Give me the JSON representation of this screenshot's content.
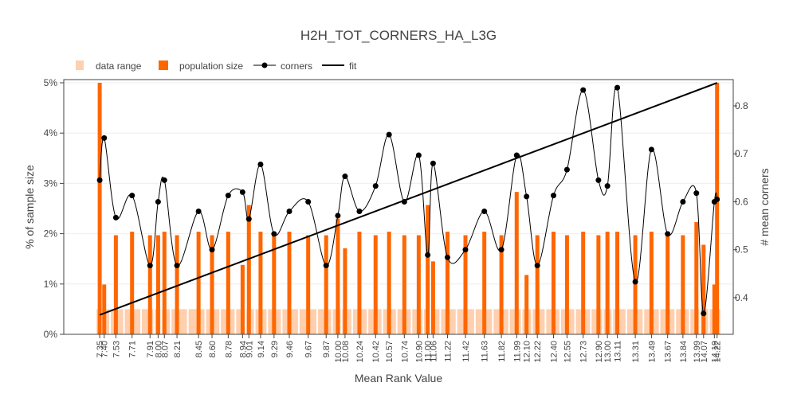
{
  "chart_data": {
    "type": "bar",
    "title": "H2H_TOT_CORNERS_HA_L3G",
    "xlabel": "Mean Rank Value",
    "ylabel_left": "% of sample size",
    "ylabel_right": "# mean corners",
    "xlim": [
      6.95,
      14.4
    ],
    "ylim_left": [
      0,
      5
    ],
    "ylim_right": [
      0.3235,
      0.8548
    ],
    "left_ticks": [
      {
        "v": 0,
        "label": "0%"
      },
      {
        "v": 1,
        "label": "1%"
      },
      {
        "v": 2,
        "label": "2%"
      },
      {
        "v": 3,
        "label": "3%"
      },
      {
        "v": 4,
        "label": "4%"
      },
      {
        "v": 5,
        "label": "5%"
      }
    ],
    "right_ticks": [
      {
        "v": 0.4,
        "label": "0.4"
      },
      {
        "v": 0.5,
        "label": "0.5"
      },
      {
        "v": 0.6,
        "label": "0.6"
      },
      {
        "v": 0.7,
        "label": "0.7"
      },
      {
        "v": 0.8,
        "label": "0.8"
      }
    ],
    "x_tick_labels": [
      "7.35",
      "7.40",
      "7.53",
      "7.71",
      "7.91",
      "8.00",
      "8.07",
      "8.21",
      "8.45",
      "8.60",
      "8.78",
      "8.94",
      "9.01",
      "9.14",
      "9.29",
      "9.46",
      "9.67",
      "9.87",
      "10.00",
      "10.08",
      "10.24",
      "10.42",
      "10.57",
      "10.74",
      "10.90",
      "11.00",
      "11.06",
      "11.22",
      "11.42",
      "11.63",
      "11.82",
      "11.99",
      "12.10",
      "12.22",
      "12.40",
      "12.55",
      "12.73",
      "12.90",
      "13.00",
      "13.11",
      "13.31",
      "13.49",
      "13.67",
      "13.84",
      "13.99",
      "14.07",
      "14.19",
      "14.22"
    ],
    "legend": {
      "placement": "top-left",
      "items": [
        {
          "label": "data range",
          "kind": "range"
        },
        {
          "label": "population size",
          "kind": "bar"
        },
        {
          "label": "corners",
          "kind": "line-marker"
        },
        {
          "label": "fit",
          "kind": "line"
        }
      ]
    },
    "series": [
      {
        "name": "population size",
        "axis": "left",
        "color": "#ff6600",
        "x": [
          7.35,
          7.4,
          7.53,
          7.71,
          7.91,
          8.0,
          8.07,
          8.21,
          8.45,
          8.6,
          8.78,
          8.94,
          9.01,
          9.14,
          9.29,
          9.46,
          9.67,
          9.87,
          10.0,
          10.08,
          10.24,
          10.42,
          10.57,
          10.74,
          10.9,
          11.0,
          11.06,
          11.22,
          11.42,
          11.63,
          11.82,
          11.99,
          12.1,
          12.22,
          12.4,
          12.55,
          12.73,
          12.9,
          13.0,
          13.11,
          13.31,
          13.49,
          13.67,
          13.84,
          13.99,
          14.07,
          14.19,
          14.22
        ],
        "values": [
          5.0,
          0.99,
          1.97,
          2.04,
          1.97,
          1.97,
          2.04,
          1.97,
          2.04,
          1.97,
          2.04,
          1.38,
          2.57,
          2.04,
          1.97,
          2.04,
          1.97,
          1.97,
          2.3,
          1.71,
          2.04,
          1.97,
          2.04,
          1.97,
          1.97,
          2.57,
          1.45,
          2.04,
          1.97,
          2.04,
          1.97,
          2.83,
          1.18,
          1.97,
          2.04,
          1.97,
          2.04,
          1.97,
          2.04,
          2.04,
          1.97,
          2.04,
          1.97,
          1.97,
          2.23,
          1.78,
          0.99,
          5.0
        ]
      },
      {
        "name": "corners",
        "axis": "right",
        "color": "#000000",
        "x": [
          7.35,
          7.4,
          7.53,
          7.71,
          7.91,
          8.0,
          8.07,
          8.21,
          8.45,
          8.6,
          8.78,
          8.94,
          9.01,
          9.14,
          9.29,
          9.46,
          9.67,
          9.87,
          10.0,
          10.08,
          10.24,
          10.42,
          10.57,
          10.74,
          10.9,
          11.0,
          11.06,
          11.22,
          11.42,
          11.63,
          11.82,
          11.99,
          12.1,
          12.22,
          12.4,
          12.55,
          12.73,
          12.9,
          13.0,
          13.11,
          13.31,
          13.49,
          13.67,
          13.84,
          13.99,
          14.07,
          14.19,
          14.22
        ],
        "values": [
          0.645,
          0.733,
          0.567,
          0.613,
          0.467,
          0.6,
          0.645,
          0.467,
          0.58,
          0.5,
          0.613,
          0.62,
          0.564,
          0.678,
          0.533,
          0.58,
          0.6,
          0.467,
          0.571,
          0.653,
          0.58,
          0.633,
          0.74,
          0.6,
          0.697,
          0.489,
          0.68,
          0.484,
          0.5,
          0.58,
          0.5,
          0.697,
          0.611,
          0.467,
          0.613,
          0.667,
          0.833,
          0.645,
          0.633,
          0.838,
          0.433,
          0.709,
          0.533,
          0.6,
          0.618,
          0.367,
          0.6,
          0.605
        ]
      },
      {
        "name": "fit",
        "axis": "right",
        "color": "#000000",
        "x": [
          7.35,
          14.22
        ],
        "values": [
          0.364,
          0.848
        ]
      }
    ],
    "data_range_band": {
      "axis": "left",
      "value": 0.5,
      "color": "#ffcfae"
    }
  }
}
